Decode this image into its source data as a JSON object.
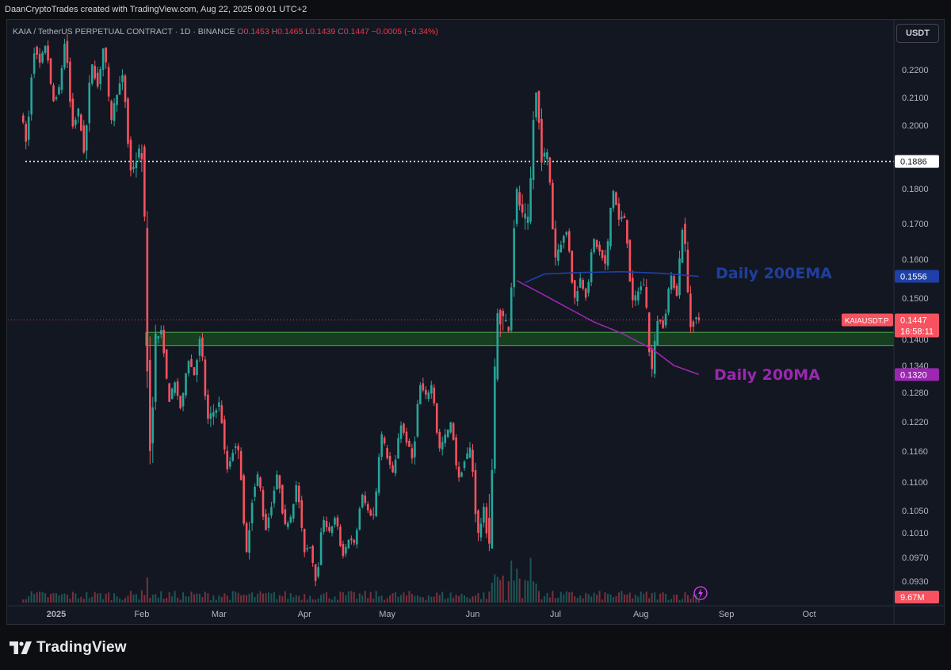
{
  "header": {
    "credit": "DaanCryptoTrades created with TradingView.com, Aug 22, 2025 09:01 UTC+2"
  },
  "legend": {
    "symbol": "KAIA / TetherUS PERPETUAL CONTRACT · 1D · BINANCE",
    "open_label": "O",
    "open": "0.1453",
    "high_label": "H",
    "high": "0.1465",
    "low_label": "L",
    "low": "0.1439",
    "close_label": "C",
    "close": "0.1447",
    "change": "−0.0005 (−0.34%)"
  },
  "currency_button": "USDT",
  "branding": "TradingView",
  "chart_data": {
    "type": "candlestick",
    "symbol": "KAIAUSDT.P",
    "price_axis_ticks": [
      "0.2200",
      "0.2100",
      "0.2000",
      "0.1800",
      "0.1700",
      "0.1600",
      "0.1500",
      "0.1400",
      "0.1340",
      "0.1280",
      "0.1220",
      "0.1160",
      "0.1100",
      "0.1050",
      "0.1010",
      "0.0970",
      "0.0930"
    ],
    "price_axis_tick_values": [
      0.22,
      0.21,
      0.2,
      0.18,
      0.17,
      0.16,
      0.15,
      0.14,
      0.134,
      0.128,
      0.122,
      0.116,
      0.11,
      0.105,
      0.101,
      0.097,
      0.093
    ],
    "x_tick_labels": [
      "2025",
      "Feb",
      "Mar",
      "Apr",
      "May",
      "Jun",
      "Jul",
      "Aug",
      "Sep",
      "Oct"
    ],
    "price_labels": {
      "dotted_level": "0.1886",
      "ema": "0.1556",
      "last_symbol": "KAIAUSDT.P",
      "last_price": "0.1447",
      "countdown": "16:58:11",
      "ma": "0.1320",
      "volume": "9.67M"
    },
    "levels": {
      "resistance_dotted": 0.1886,
      "support_zone": [
        0.1386,
        0.1417
      ]
    },
    "annotations": {
      "ema": "Daily 200EMA",
      "ma": "Daily 200MA"
    },
    "ema_200": [
      [
        "2025-06-20",
        0.154
      ],
      [
        "2025-06-27",
        0.1562
      ],
      [
        "2025-07-10",
        0.1566
      ],
      [
        "2025-07-25",
        0.1568
      ],
      [
        "2025-08-08",
        0.1564
      ],
      [
        "2025-08-22",
        0.1556
      ]
    ],
    "ma_200": [
      [
        "2025-06-17",
        0.1545
      ],
      [
        "2025-06-25",
        0.1515
      ],
      [
        "2025-07-05",
        0.1478
      ],
      [
        "2025-07-15",
        0.1442
      ],
      [
        "2025-07-25",
        0.1415
      ],
      [
        "2025-08-05",
        0.1378
      ],
      [
        "2025-08-13",
        0.134
      ],
      [
        "2025-08-22",
        0.132
      ]
    ],
    "candles_weekly_summary": [
      {
        "d": "2024-12-20",
        "o": 0.205,
        "h": 0.228,
        "l": 0.193,
        "c": 0.222
      },
      {
        "d": "2024-12-27",
        "o": 0.222,
        "h": 0.23,
        "l": 0.208,
        "c": 0.213
      },
      {
        "d": "2025-01-03",
        "o": 0.213,
        "h": 0.232,
        "l": 0.199,
        "c": 0.205
      },
      {
        "d": "2025-01-10",
        "o": 0.205,
        "h": 0.224,
        "l": 0.19,
        "c": 0.214
      },
      {
        "d": "2025-01-17",
        "o": 0.214,
        "h": 0.23,
        "l": 0.201,
        "c": 0.212
      },
      {
        "d": "2025-01-24",
        "o": 0.212,
        "h": 0.218,
        "l": 0.185,
        "c": 0.189
      },
      {
        "d": "2025-01-31",
        "o": 0.189,
        "h": 0.192,
        "l": 0.112,
        "c": 0.14
      },
      {
        "d": "2025-02-07",
        "o": 0.14,
        "h": 0.142,
        "l": 0.126,
        "c": 0.13
      },
      {
        "d": "2025-02-14",
        "o": 0.13,
        "h": 0.136,
        "l": 0.124,
        "c": 0.132
      },
      {
        "d": "2025-02-21",
        "o": 0.132,
        "h": 0.141,
        "l": 0.122,
        "c": 0.124
      },
      {
        "d": "2025-02-28",
        "o": 0.124,
        "h": 0.126,
        "l": 0.112,
        "c": 0.116
      },
      {
        "d": "2025-03-07",
        "o": 0.116,
        "h": 0.117,
        "l": 0.096,
        "c": 0.107
      },
      {
        "d": "2025-03-14",
        "o": 0.107,
        "h": 0.112,
        "l": 0.101,
        "c": 0.106
      },
      {
        "d": "2025-03-21",
        "o": 0.106,
        "h": 0.112,
        "l": 0.102,
        "c": 0.104
      },
      {
        "d": "2025-03-28",
        "o": 0.104,
        "h": 0.11,
        "l": 0.098,
        "c": 0.099
      },
      {
        "d": "2025-04-04",
        "o": 0.099,
        "h": 0.104,
        "l": 0.0925,
        "c": 0.101
      },
      {
        "d": "2025-04-11",
        "o": 0.101,
        "h": 0.104,
        "l": 0.097,
        "c": 0.1
      },
      {
        "d": "2025-04-18",
        "o": 0.1,
        "h": 0.108,
        "l": 0.099,
        "c": 0.105
      },
      {
        "d": "2025-04-25",
        "o": 0.105,
        "h": 0.12,
        "l": 0.104,
        "c": 0.115
      },
      {
        "d": "2025-05-02",
        "o": 0.115,
        "h": 0.122,
        "l": 0.111,
        "c": 0.118
      },
      {
        "d": "2025-05-09",
        "o": 0.118,
        "h": 0.13,
        "l": 0.114,
        "c": 0.127
      },
      {
        "d": "2025-05-16",
        "o": 0.127,
        "h": 0.13,
        "l": 0.116,
        "c": 0.119
      },
      {
        "d": "2025-05-23",
        "o": 0.119,
        "h": 0.122,
        "l": 0.11,
        "c": 0.114
      },
      {
        "d": "2025-05-30",
        "o": 0.114,
        "h": 0.117,
        "l": 0.1,
        "c": 0.105
      },
      {
        "d": "2025-06-06",
        "o": 0.105,
        "h": 0.146,
        "l": 0.099,
        "c": 0.145
      },
      {
        "d": "2025-06-13",
        "o": 0.145,
        "h": 0.18,
        "l": 0.143,
        "c": 0.172
      },
      {
        "d": "2025-06-20",
        "o": 0.172,
        "h": 0.215,
        "l": 0.17,
        "c": 0.19
      },
      {
        "d": "2025-06-27",
        "o": 0.19,
        "h": 0.191,
        "l": 0.16,
        "c": 0.165
      },
      {
        "d": "2025-07-04",
        "o": 0.165,
        "h": 0.168,
        "l": 0.149,
        "c": 0.155
      },
      {
        "d": "2025-07-11",
        "o": 0.155,
        "h": 0.166,
        "l": 0.15,
        "c": 0.162
      },
      {
        "d": "2025-07-18",
        "o": 0.162,
        "h": 0.181,
        "l": 0.158,
        "c": 0.171
      },
      {
        "d": "2025-07-25",
        "o": 0.171,
        "h": 0.172,
        "l": 0.148,
        "c": 0.152
      },
      {
        "d": "2025-08-01",
        "o": 0.152,
        "h": 0.154,
        "l": 0.131,
        "c": 0.145
      },
      {
        "d": "2025-08-08",
        "o": 0.145,
        "h": 0.156,
        "l": 0.143,
        "c": 0.151
      },
      {
        "d": "2025-08-15",
        "o": 0.151,
        "h": 0.172,
        "l": 0.143,
        "c": 0.145
      },
      {
        "d": "2025-08-22",
        "o": 0.1453,
        "h": 0.1465,
        "l": 0.1439,
        "c": 0.1447
      }
    ],
    "colors": {
      "up": "#26a69a",
      "down": "#f7525f",
      "ema": "#1e40a8",
      "ma": "#9c27b0",
      "zone": "#1b5e20",
      "zone_border": "#4caf50"
    }
  }
}
